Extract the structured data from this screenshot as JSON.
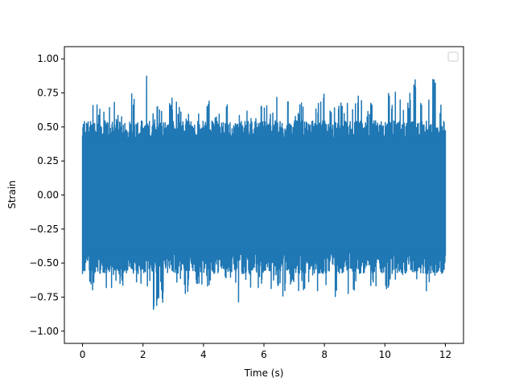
{
  "chart_data": {
    "type": "line",
    "title": "",
    "xlabel": "Time (s)",
    "ylabel": "Strain",
    "xlim": [
      -0.6,
      12.6
    ],
    "ylim": [
      -1.09,
      1.09
    ],
    "x_ticks": [
      0,
      2,
      4,
      6,
      8,
      10,
      12
    ],
    "x_tick_labels": [
      "0",
      "2",
      "4",
      "6",
      "8",
      "10",
      "12"
    ],
    "y_ticks": [
      -1.0,
      -0.75,
      -0.5,
      -0.25,
      0.0,
      0.25,
      0.5,
      0.75,
      1.0
    ],
    "y_tick_labels": [
      "−1.00",
      "−0.75",
      "−0.50",
      "−0.25",
      "0.00",
      "0.25",
      "0.50",
      "0.75",
      "1.00"
    ],
    "grid": false,
    "legend": {
      "placement": "top-right",
      "entries": []
    },
    "series": [
      {
        "color": "#1f77b4",
        "description_of_envelope": "",
        "envelope": {
          "x": [
            0.0,
            0.2,
            0.4,
            0.5,
            0.6,
            0.8,
            1.0,
            1.2,
            1.4,
            1.5,
            1.6,
            1.8,
            2.0,
            2.1,
            2.2,
            2.4,
            2.6,
            2.75,
            2.9,
            3.0,
            3.2,
            3.4,
            3.6,
            3.8,
            4.0,
            4.2,
            4.4,
            4.6,
            4.8,
            5.0,
            5.2,
            5.4,
            5.6,
            5.8,
            6.0,
            6.2,
            6.4,
            6.6,
            6.8,
            7.0,
            7.2,
            7.4,
            7.6,
            7.8,
            8.0,
            8.2,
            8.4,
            8.6,
            8.8,
            9.0,
            9.2,
            9.4,
            9.6,
            9.8,
            10.0,
            10.2,
            10.4,
            10.6,
            10.8,
            11.0,
            11.2,
            11.4,
            11.6,
            11.8,
            12.0
          ],
          "upper": [
            0.52,
            0.72,
            0.75,
            0.7,
            0.62,
            0.71,
            0.72,
            0.58,
            0.72,
            0.69,
            0.85,
            0.62,
            0.7,
            1.0,
            0.7,
            0.62,
            0.72,
            0.66,
            0.7,
            0.74,
            0.68,
            0.58,
            0.72,
            0.7,
            0.63,
            0.7,
            0.6,
            0.65,
            0.72,
            0.7,
            0.6,
            0.65,
            0.6,
            0.64,
            0.75,
            0.6,
            0.8,
            0.66,
            0.7,
            0.6,
            0.7,
            0.65,
            0.58,
            0.7,
            0.78,
            0.62,
            0.7,
            0.68,
            0.71,
            0.7,
            0.77,
            0.66,
            0.72,
            0.65,
            0.8,
            0.72,
            0.88,
            0.62,
            0.74,
            0.89,
            0.72,
            0.73,
            0.93,
            0.72,
            0.56
          ],
          "lower": [
            -0.7,
            -0.67,
            -0.72,
            -0.63,
            -0.68,
            -0.72,
            -0.67,
            -0.65,
            -0.8,
            -0.72,
            -0.7,
            -0.67,
            -0.75,
            -0.72,
            -0.69,
            -0.93,
            -0.72,
            -0.98,
            -0.72,
            -0.7,
            -0.63,
            -0.74,
            -0.68,
            -0.7,
            -0.65,
            -0.72,
            -0.67,
            -0.62,
            -0.7,
            -0.72,
            -0.82,
            -0.65,
            -0.7,
            -0.68,
            -0.7,
            -0.72,
            -0.62,
            -0.8,
            -0.7,
            -0.67,
            -0.72,
            -0.7,
            -0.68,
            -0.72,
            -0.65,
            -0.93,
            -0.72,
            -0.68,
            -0.79,
            -0.7,
            -0.75,
            -0.72,
            -0.68,
            -0.72,
            -0.7,
            -0.69,
            -0.72,
            -0.65,
            -0.7,
            -0.68,
            -0.62,
            -0.72,
            -0.7,
            -0.6,
            -0.45
          ]
        },
        "dense_min": -0.55,
        "dense_max": 0.52
      }
    ]
  }
}
